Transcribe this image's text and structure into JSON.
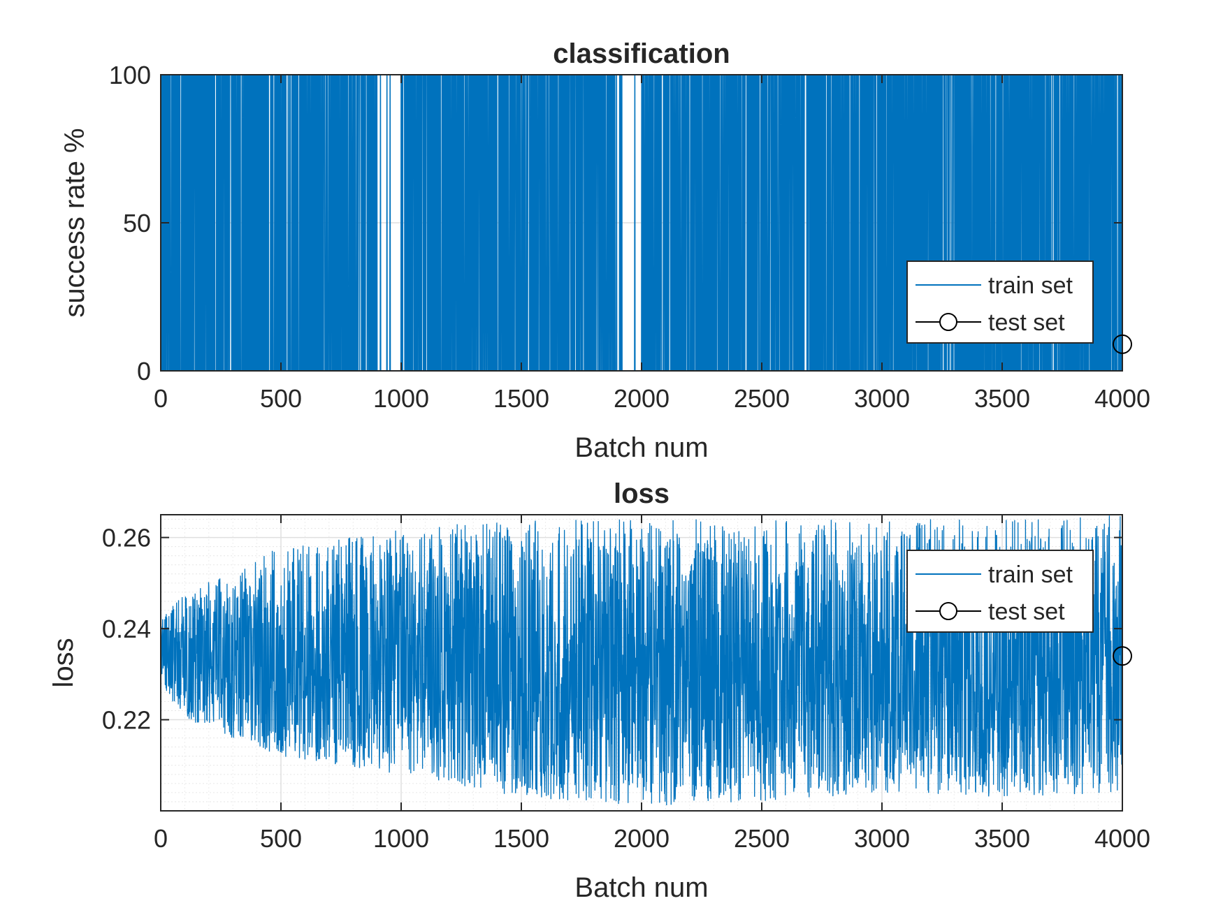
{
  "colors": {
    "train": "#0072BD",
    "test": "#000000",
    "axis": "#262626",
    "grid": "#DFDFDF"
  },
  "chart_data": [
    {
      "type": "line",
      "title": "classification",
      "xlabel": "Batch num",
      "ylabel": "success rate %",
      "xlim": [
        0,
        4000
      ],
      "ylim": [
        0,
        100
      ],
      "xticks": [
        0,
        500,
        1000,
        1500,
        2000,
        2500,
        3000,
        3500,
        4000
      ],
      "yticks": [
        0,
        50,
        100
      ],
      "grid": "major",
      "legend_position": "bottom-right",
      "series": [
        {
          "name": "train set",
          "style": "line",
          "description": "each batch is either 0 or 100; dense vertical switching",
          "x_start": 1,
          "x_end": 4000,
          "levels": [
            0,
            100
          ],
          "fraction_at_100": 0.5,
          "sparse_gaps": [
            [
              900,
              1000
            ],
            [
              1920,
              2000
            ],
            [
              2490,
              2500
            ]
          ]
        },
        {
          "name": "test set",
          "style": "marker-circle",
          "x": [
            4000
          ],
          "y": [
            9
          ]
        }
      ]
    },
    {
      "type": "line",
      "title": "loss",
      "xlabel": "Batch num",
      "ylabel": "loss",
      "xlim": [
        0,
        4000
      ],
      "ylim": [
        0.2,
        0.265
      ],
      "xticks": [
        0,
        500,
        1000,
        1500,
        2000,
        2500,
        3000,
        3500,
        4000
      ],
      "yticks": [
        0.22,
        0.24,
        0.26
      ],
      "grid": "major+minor",
      "legend_position": "top-right",
      "series": [
        {
          "name": "train set",
          "style": "line",
          "description": "noisy loss; lower envelope decreases, upper envelope ~0.25-0.265",
          "lower_envelope": {
            "x": [
              0,
              100,
              500,
              1000,
              1500,
              2000,
              2500,
              3000,
              3500,
              4000
            ],
            "y": [
              0.228,
              0.22,
              0.212,
              0.208,
              0.203,
              0.201,
              0.202,
              0.204,
              0.203,
              0.204
            ]
          },
          "upper_envelope": {
            "x": [
              0,
              100,
              500,
              1000,
              1500,
              2000,
              2500,
              3000,
              3500,
              4000
            ],
            "y": [
              0.244,
              0.248,
              0.258,
              0.262,
              0.264,
              0.264,
              0.264,
              0.264,
              0.264,
              0.265
            ]
          }
        },
        {
          "name": "test set",
          "style": "marker-circle",
          "x": [
            4000
          ],
          "y": [
            0.234
          ]
        }
      ]
    }
  ]
}
